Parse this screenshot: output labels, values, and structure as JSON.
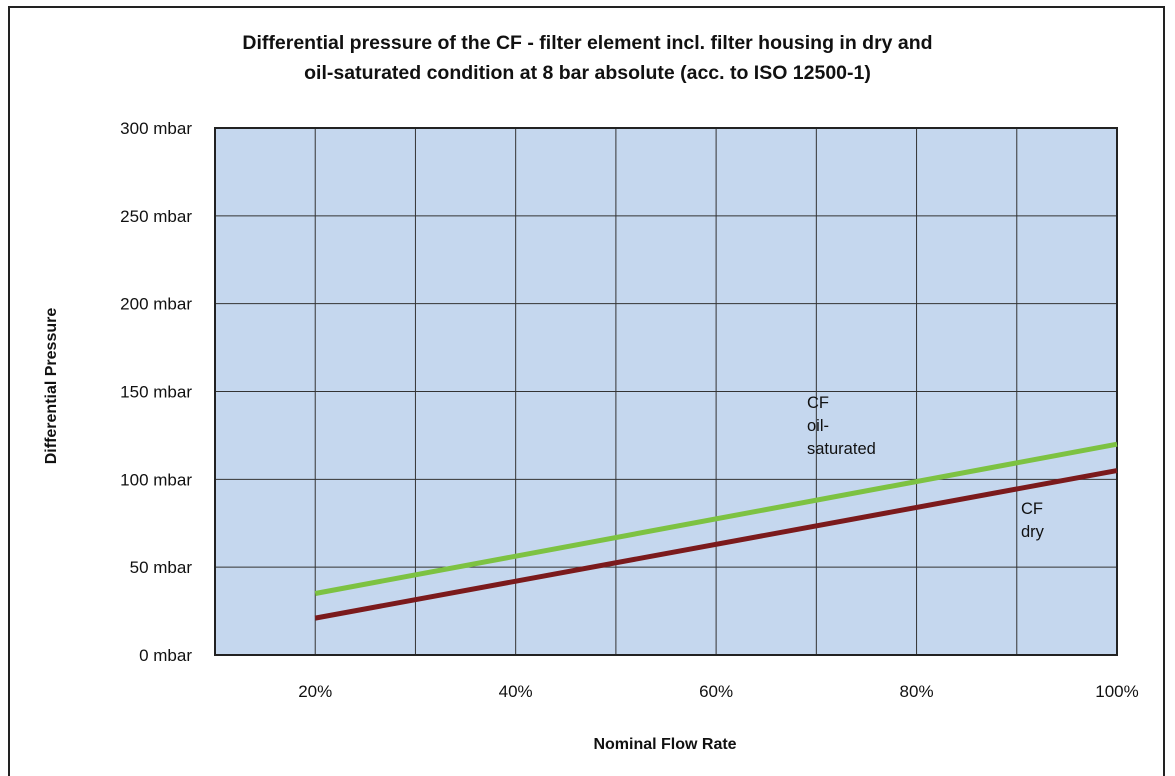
{
  "chart_data": {
    "type": "line",
    "title_line1": "Differential pressure of the CF - filter element incl. filter housing in dry and",
    "title_line2": "oil-saturated condition at 8 bar absolute (acc. to ISO 12500-1)",
    "xlabel": "Nominal Flow Rate",
    "ylabel": "Differential Pressure",
    "xlim": [
      10,
      100
    ],
    "ylim": [
      0,
      300
    ],
    "x_ticks": [
      20,
      40,
      60,
      80,
      100
    ],
    "x_tick_labels": [
      "20%",
      "40%",
      "60%",
      "80%",
      "100%"
    ],
    "y_ticks": [
      0,
      50,
      100,
      150,
      200,
      250,
      300
    ],
    "y_tick_labels": [
      "0 mbar",
      "50 mbar",
      "100 mbar",
      "150 mbar",
      "200 mbar",
      "250 mbar",
      "300 mbar"
    ],
    "x_gridlines": [
      20,
      30,
      40,
      50,
      60,
      70,
      80,
      90
    ],
    "grid": true,
    "plot_background": "#c5d7ee",
    "series": [
      {
        "label_lines": [
          "CF",
          "oil-",
          "saturated"
        ],
        "color": "#7dc242",
        "x": [
          20,
          100
        ],
        "y": [
          35,
          120
        ]
      },
      {
        "label_lines": [
          "CF",
          "dry"
        ],
        "color": "#7b1a1c",
        "x": [
          20,
          100
        ],
        "y": [
          21,
          105
        ]
      }
    ]
  }
}
